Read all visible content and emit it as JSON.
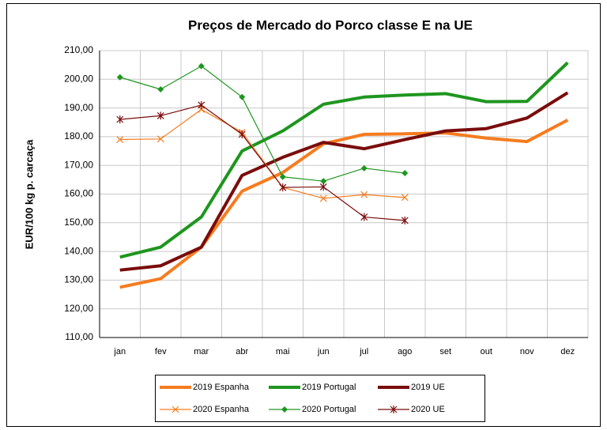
{
  "chart_data": {
    "type": "line",
    "title": "Preços de Mercado do Porco classe E na UE",
    "y_label": "EUR/100 kg p. carcaça",
    "categories": [
      "jan",
      "fev",
      "mar",
      "abr",
      "mai",
      "jun",
      "jul",
      "ago",
      "set",
      "out",
      "nov",
      "dez"
    ],
    "series": [
      {
        "name": "2019 Espanha",
        "color": "#f57c1f",
        "width": 4,
        "marker": "none",
        "values": [
          127.5,
          130.5,
          141.5,
          161,
          167.5,
          177.5,
          180.8,
          181,
          181.3,
          179.5,
          178.3,
          185.8
        ]
      },
      {
        "name": "2019 Portugal",
        "color": "#1e961e",
        "width": 4,
        "marker": "none",
        "values": [
          138,
          141.5,
          152,
          175,
          182,
          191.3,
          193.8,
          194.5,
          195,
          192.2,
          192.3,
          205.8
        ]
      },
      {
        "name": "2019 UE",
        "color": "#7a0c0c",
        "width": 4,
        "marker": "none",
        "values": [
          133.5,
          135,
          141.5,
          166.5,
          172.8,
          178,
          175.8,
          179,
          182,
          182.8,
          186.5,
          195.3
        ]
      },
      {
        "name": "2020 Espanha",
        "color": "#f57c1f",
        "width": 1.2,
        "marker": "x",
        "values": [
          179,
          179.2,
          189.5,
          181.5,
          162.3,
          158.5,
          159.8,
          158.8,
          null,
          null,
          null,
          null
        ]
      },
      {
        "name": "2020 Portugal",
        "color": "#1e961e",
        "width": 1.2,
        "marker": "diamond",
        "values": [
          200.7,
          196.5,
          204.6,
          193.8,
          166,
          164.5,
          169,
          167.3,
          null,
          null,
          null,
          null
        ]
      },
      {
        "name": "2020 UE",
        "color": "#7a0c0c",
        "width": 1.2,
        "marker": "star",
        "values": [
          186,
          187.3,
          191,
          180.8,
          162.3,
          162.5,
          152,
          150.8,
          null,
          null,
          null,
          null
        ]
      }
    ],
    "ylim": [
      110,
      210
    ],
    "yticks": [
      {
        "value": 110,
        "label": "110,00"
      },
      {
        "value": 120,
        "label": "120,00"
      },
      {
        "value": 130,
        "label": "130,00"
      },
      {
        "value": 140,
        "label": "140,00"
      },
      {
        "value": 150,
        "label": "150,00"
      },
      {
        "value": 160,
        "label": "160,00"
      },
      {
        "value": 170,
        "label": "170,00"
      },
      {
        "value": 180,
        "label": "180,00"
      },
      {
        "value": 190,
        "label": "190,00"
      },
      {
        "value": 200,
        "label": "200,00"
      },
      {
        "value": 210,
        "label": "210,00"
      }
    ],
    "grid": true,
    "legend": "bottom"
  }
}
